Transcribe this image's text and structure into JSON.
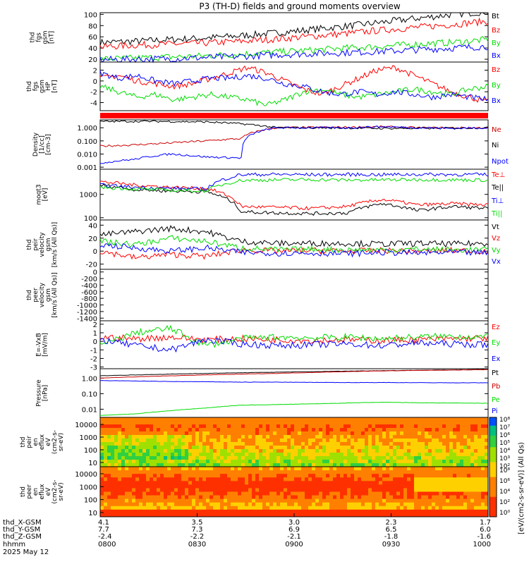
{
  "title": "P3 (TH-D) fields and ground moments overview",
  "chart_data": [
    {
      "type": "line",
      "ylabel": [
        "thd",
        "fgs",
        "gsm",
        "[nT]"
      ],
      "ytick_labels": [
        "100",
        "80",
        "60",
        "40",
        "20"
      ],
      "ytick_values": [
        100,
        80,
        60,
        40,
        20
      ],
      "ylim": [
        15,
        103
      ],
      "series": [
        {
          "name": "Bt",
          "color": "#000000",
          "values": [
            50,
            52,
            55,
            58,
            62,
            67,
            73,
            79,
            86,
            93,
            100,
            105
          ]
        },
        {
          "name": "Bz",
          "color": "#ff0000",
          "values": [
            42,
            45,
            47,
            49,
            52,
            56,
            61,
            66,
            72,
            77,
            82,
            88
          ]
        },
        {
          "name": "By",
          "color": "#00dd00",
          "values": [
            20,
            22,
            24,
            26,
            29,
            33,
            36,
            40,
            43,
            47,
            50,
            55
          ]
        },
        {
          "name": "Bx",
          "color": "#0000ff",
          "values": [
            19,
            20,
            21,
            23,
            25,
            28,
            30,
            32,
            34,
            37,
            40,
            43
          ]
        }
      ]
    },
    {
      "type": "line",
      "ylabel": [
        "thd",
        "fgs",
        "gsm",
        "HP",
        "[nT]"
      ],
      "ytick_labels": [
        "2",
        "0",
        "-2",
        "-4"
      ],
      "ytick_values": [
        2,
        0,
        -2,
        -4
      ],
      "ylim": [
        -5.5,
        3.5
      ],
      "series": [
        {
          "name": "Bz",
          "color": "#ff0000",
          "values": [
            0.5,
            1.0,
            0,
            -0.5,
            -1.0,
            -0.5,
            0.5,
            1.5,
            2.5,
            1.5,
            0,
            -1.5,
            -2.5,
            -1.0,
            0.5,
            2.0,
            2.5,
            1.0,
            -0.5,
            -2.0,
            -3.0,
            -4.0
          ]
        },
        {
          "name": "By",
          "color": "#00dd00",
          "values": [
            -1.0,
            -2.0,
            -3.0,
            -2.5,
            -3.5,
            -3.0,
            -2.5,
            -3.0,
            -3.5,
            -4.5,
            -3.5,
            -2.0,
            -1.5,
            -2.5,
            -3.0,
            -2.5,
            -2.0,
            -1.5,
            -2.0,
            -2.5,
            -1.5,
            -1.0
          ]
        },
        {
          "name": "Bx",
          "color": "#0000ff",
          "values": [
            1.5,
            0.5,
            1.0,
            0,
            -0.5,
            0,
            0.5,
            0.5,
            1.0,
            0.5,
            -0.5,
            -1.0,
            -2.0,
            -2.5,
            -2.0,
            -2.5,
            -2.0,
            -2.5,
            -3.0,
            -2.5,
            -3.0,
            -3.5
          ]
        }
      ]
    },
    {
      "type": "line",
      "ylabel": [
        "Density",
        "[1/cc]",
        "[cm-3]"
      ],
      "ytick_labels": [
        "1.000",
        "0.100",
        "0.010",
        "0.001"
      ],
      "ytick_values": [
        1,
        0.1,
        0.01,
        0.001
      ],
      "yscale": "log",
      "ylim": [
        0.0007,
        4
      ],
      "series": [
        {
          "name": "Ne",
          "color": "#cc0000",
          "values": [
            0.04,
            0.05,
            0.07,
            0.1,
            0.15,
            1.0,
            1.05,
            1.1,
            1.2,
            1.0,
            1.0,
            1.0
          ]
        },
        {
          "name": "Ni",
          "color": "#000000",
          "values": [
            3.0,
            3.1,
            3.0,
            2.8,
            2.0,
            1.0,
            1.0,
            0.95,
            0.9,
            0.9,
            0.95,
            1.0
          ]
        },
        {
          "name": "Npot",
          "color": "#0000ff",
          "values": [
            0.002,
            0.004,
            0.01,
            0.006,
            0.005,
            1.0,
            1.0,
            1.0,
            1.2,
            1.0,
            0.9,
            1.0
          ]
        }
      ]
    },
    {
      "type": "line",
      "ylabel": [
        "moqt3",
        "[eV]"
      ],
      "ytick_labels": [
        "1000",
        "100"
      ],
      "ytick_values": [
        1000,
        100
      ],
      "yscale": "log",
      "ylim": [
        80,
        12000
      ],
      "series": [
        {
          "name": "Te⊥",
          "color": "#ff0000",
          "values": [
            3500,
            2500,
            2000,
            1800,
            300,
            280,
            250,
            300,
            600,
            350,
            400,
            350
          ]
        },
        {
          "name": "Te||",
          "color": "#000000",
          "values": [
            2500,
            1600,
            1400,
            1300,
            180,
            160,
            150,
            160,
            400,
            200,
            300,
            250
          ]
        },
        {
          "name": "Ti⊥",
          "color": "#0000ff",
          "values": [
            2500,
            2000,
            1800,
            1700,
            7000,
            7200,
            7000,
            7100,
            7000,
            7200,
            7100,
            7000
          ]
        },
        {
          "name": "Ti||",
          "color": "#00dd00",
          "values": [
            2000,
            1700,
            1500,
            1400,
            4000,
            4200,
            4300,
            4100,
            4200,
            4300,
            4200,
            4100
          ]
        }
      ]
    },
    {
      "type": "line",
      "ylabel": [
        "thd",
        "peir",
        "velocity",
        "gsm",
        "[km/s (All Qs)]"
      ],
      "ytick_labels": [
        "40",
        "20",
        "0",
        "-20"
      ],
      "ytick_values": [
        40,
        20,
        0,
        -20
      ],
      "ylim": [
        -28,
        48
      ],
      "series": [
        {
          "name": "Vt",
          "color": "#000000",
          "values": [
            25,
            30,
            35,
            30,
            15,
            12,
            12,
            12,
            11,
            12,
            11,
            12
          ]
        },
        {
          "name": "Vz",
          "color": "#ff0000",
          "values": [
            0,
            -10,
            -5,
            -8,
            2,
            0,
            1,
            0,
            1,
            0,
            1,
            0
          ]
        },
        {
          "name": "Vy",
          "color": "#00dd00",
          "values": [
            15,
            10,
            20,
            15,
            5,
            2,
            3,
            2,
            2,
            3,
            2,
            2
          ]
        },
        {
          "name": "Vx",
          "color": "#0000ff",
          "values": [
            10,
            5,
            0,
            5,
            -2,
            -3,
            -3,
            -4,
            -2,
            -3,
            -2,
            -3
          ]
        }
      ]
    },
    {
      "type": "line",
      "ylabel": [
        "thd",
        "peer",
        "velocity",
        "gsm",
        "[km/s (All Qs)]"
      ],
      "ytick_labels": [
        "0",
        "-200",
        "-400",
        "-600",
        "-800",
        "-1000",
        "-1200",
        "-1400"
      ],
      "ytick_values": [
        0,
        -200,
        -400,
        -600,
        -800,
        -1000,
        -1200,
        -1400
      ],
      "ylim": [
        -1480,
        80
      ],
      "series": [
        {
          "name": "Vt",
          "color": "#000000",
          "values": []
        },
        {
          "name": "Vz",
          "color": "#ff0000",
          "values": []
        },
        {
          "name": "Vy",
          "color": "#00dd00",
          "values": []
        },
        {
          "name": "Vx",
          "color": "#0000ff",
          "values": []
        }
      ]
    },
    {
      "type": "line",
      "ylabel": [
        "E=-VxB",
        "[mV/m]"
      ],
      "ytick_labels": [
        "2",
        "1",
        "0",
        "-1",
        "-2",
        "-3"
      ],
      "ytick_values": [
        2,
        1,
        0,
        -1,
        -2,
        -3
      ],
      "ylim": [
        -3.2,
        2.4
      ],
      "series": [
        {
          "name": "Ez",
          "color": "#ff0000",
          "values": [
            0.5,
            0.3,
            0.5,
            0.2,
            0.3,
            0.2,
            0.1,
            0.2,
            0.1,
            0.2,
            0.3,
            0.4
          ]
        },
        {
          "name": "Ey",
          "color": "#00dd00",
          "values": [
            -0.5,
            1.0,
            1.5,
            -0.5,
            0.3,
            0.5,
            0.4,
            0.5,
            0.3,
            0.5,
            0.6,
            0.5
          ]
        },
        {
          "name": "Ex",
          "color": "#0000ff",
          "values": [
            0.2,
            -0.5,
            -1.0,
            0.2,
            -0.3,
            -0.5,
            -0.4,
            -0.3,
            -0.5,
            -0.2,
            -0.3,
            -0.4
          ]
        }
      ]
    },
    {
      "type": "line",
      "ylabel": [
        "Pressure",
        "[nPa]"
      ],
      "ytick_labels": [
        "1.00",
        "0.10",
        "0.01"
      ],
      "ytick_values": [
        1,
        0.1,
        0.01
      ],
      "yscale": "log",
      "ylim": [
        0.003,
        4
      ],
      "series": [
        {
          "name": "Pt",
          "color": "#000000",
          "values": [
            1.4,
            1.6,
            1.8,
            2.0,
            2.2,
            2.4,
            2.6,
            2.8,
            3.0,
            3.2,
            3.4,
            3.6
          ]
        },
        {
          "name": "Pb",
          "color": "#cc0000",
          "values": [
            1.0,
            1.2,
            1.4,
            1.6,
            1.8,
            2.0,
            2.3,
            2.6,
            2.9,
            3.1,
            3.3,
            3.5
          ]
        },
        {
          "name": "Pe",
          "color": "#00dd00",
          "values": [
            0.004,
            0.005,
            0.008,
            0.012,
            0.018,
            0.02,
            0.022,
            0.025,
            0.028,
            0.026,
            0.025,
            0.024
          ]
        },
        {
          "name": "Pi",
          "color": "#0000ff",
          "values": [
            0.7,
            0.65,
            0.6,
            0.58,
            0.55,
            0.55,
            0.53,
            0.52,
            0.52,
            0.51,
            0.5,
            0.5
          ]
        }
      ]
    },
    {
      "type": "heatmap",
      "ylabel": [
        "thd",
        "peir",
        "en",
        "eflux",
        "eV",
        "(cm2-s-",
        "sr-eV)"
      ],
      "ytick_labels": [
        "10000",
        "1000",
        "100",
        "10"
      ]
    },
    {
      "type": "heatmap",
      "ylabel": [
        "thd",
        "peer",
        "en",
        "eflux",
        "eV",
        "(cm2-s-",
        "sr-eV)"
      ],
      "ytick_labels": [
        "10000",
        "1000",
        "100",
        "10"
      ]
    }
  ],
  "colorbar": {
    "label": "[eV/(cm2-s-sr-eV)] (All Qs)",
    "tick_labels_top": [
      "10⁸",
      "10⁷",
      "10⁶",
      "10⁵",
      "10⁴",
      "10³",
      "10²"
    ],
    "tick_labels_bottom": [
      "10⁸",
      "10⁶",
      "10⁴",
      "10²",
      "10⁰"
    ]
  },
  "x_axis": {
    "row_labels": [
      "thd_X-GSM",
      "thd_Y-GSM",
      "thd_Z-GSM",
      "hhmm",
      "2025 May 12"
    ],
    "ticks": [
      {
        "x": "4.1",
        "y": "7.7",
        "z": "-2.4",
        "hhmm": "0800"
      },
      {
        "x": "3.5",
        "y": "7.3",
        "z": "-2.2",
        "hhmm": "0830"
      },
      {
        "x": "3.0",
        "y": "6.9",
        "z": "-2.1",
        "hhmm": "0900"
      },
      {
        "x": "2.3",
        "y": "6.5",
        "z": "-1.8",
        "hhmm": "0930"
      },
      {
        "x": "1.7",
        "y": "6.0",
        "z": "-1.6",
        "hhmm": "1000"
      }
    ]
  }
}
